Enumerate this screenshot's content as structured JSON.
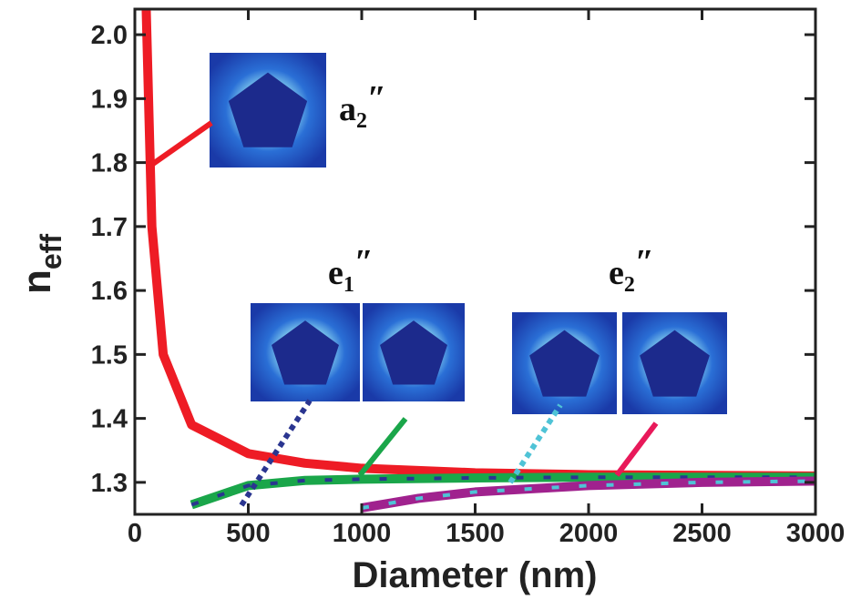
{
  "chart_data": {
    "type": "line",
    "xlabel": "Diameter (nm)",
    "ylabel": "n",
    "ylabel_sub": "eff",
    "xlim": [
      0,
      3000
    ],
    "ylim": [
      1.25,
      2.04
    ],
    "xticks": [
      0,
      500,
      1000,
      1500,
      2000,
      2500,
      3000
    ],
    "yticks": [
      1.3,
      1.4,
      1.5,
      1.6,
      1.7,
      1.8,
      1.9,
      {
        "value": 2,
        "label": "2.0"
      }
    ],
    "annotations": [
      {
        "text": "a",
        "sub": "2",
        "prime": "″"
      },
      {
        "text": "e",
        "sub": "1",
        "prime": "″"
      },
      {
        "text": "e",
        "sub": "2",
        "prime": "″"
      }
    ],
    "series": [
      {
        "color": "#ee1c25",
        "dash_color": null,
        "x": [
          50,
          75,
          125,
          250,
          500,
          750,
          1000,
          1500,
          2000,
          3000
        ],
        "values": [
          2.04,
          1.7,
          1.5,
          1.39,
          1.345,
          1.33,
          1.322,
          1.315,
          1.312,
          1.31
        ]
      },
      {
        "color": "#1aa64a",
        "dash_color": "#2a3590",
        "x": [
          250,
          500,
          750,
          1000,
          1500,
          2000,
          3000
        ],
        "values": [
          1.265,
          1.295,
          1.303,
          1.305,
          1.307,
          1.308,
          1.308
        ]
      },
      {
        "color": "#a0228e",
        "dash_color": "#4fc3d6",
        "x": [
          1000,
          1250,
          1500,
          2000,
          2500,
          3000
        ],
        "values": [
          1.26,
          1.275,
          1.285,
          1.295,
          1.3,
          1.302
        ]
      }
    ]
  }
}
